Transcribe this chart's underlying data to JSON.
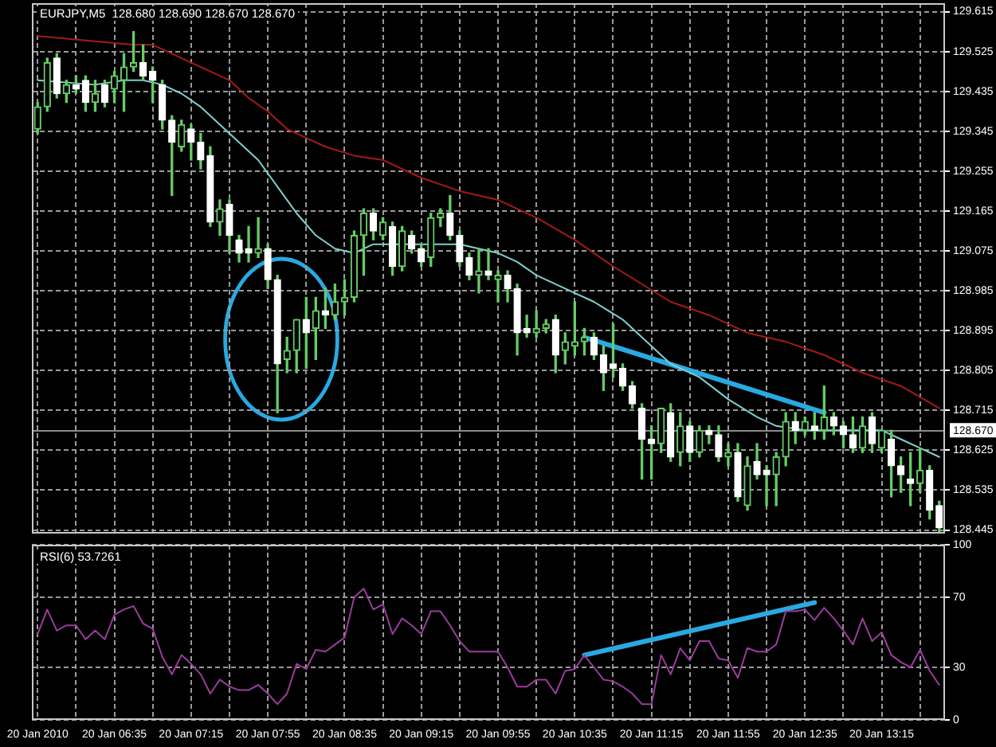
{
  "chart_data": [
    {
      "type": "candlestick",
      "title": "EURJPY,M5  128.680 128.690 128.670 128.670",
      "x": [
        "2010-01-20T05:55",
        "2010-01-20T06:00",
        "2010-01-20T06:05",
        "2010-01-20T06:10",
        "2010-01-20T06:15",
        "2010-01-20T06:20",
        "2010-01-20T06:25",
        "2010-01-20T06:30",
        "2010-01-20T06:35",
        "2010-01-20T06:40",
        "2010-01-20T06:45",
        "2010-01-20T06:50",
        "2010-01-20T06:55",
        "2010-01-20T07:00",
        "2010-01-20T07:05",
        "2010-01-20T07:10",
        "2010-01-20T07:15",
        "2010-01-20T07:20",
        "2010-01-20T07:25",
        "2010-01-20T07:30",
        "2010-01-20T07:35",
        "2010-01-20T07:40",
        "2010-01-20T07:45",
        "2010-01-20T07:50",
        "2010-01-20T07:55",
        "2010-01-20T08:00",
        "2010-01-20T08:05",
        "2010-01-20T08:10",
        "2010-01-20T08:15",
        "2010-01-20T08:20",
        "2010-01-20T08:25",
        "2010-01-20T08:30",
        "2010-01-20T08:35",
        "2010-01-20T08:40",
        "2010-01-20T08:45",
        "2010-01-20T08:50",
        "2010-01-20T08:55",
        "2010-01-20T09:00",
        "2010-01-20T09:05",
        "2010-01-20T09:10",
        "2010-01-20T09:15",
        "2010-01-20T09:20",
        "2010-01-20T09:25",
        "2010-01-20T09:30",
        "2010-01-20T09:35",
        "2010-01-20T09:40",
        "2010-01-20T09:45",
        "2010-01-20T09:50",
        "2010-01-20T09:55",
        "2010-01-20T10:00",
        "2010-01-20T10:05",
        "2010-01-20T10:10",
        "2010-01-20T10:15",
        "2010-01-20T10:20",
        "2010-01-20T10:25",
        "2010-01-20T10:30",
        "2010-01-20T10:35",
        "2010-01-20T10:40",
        "2010-01-20T10:45",
        "2010-01-20T10:50",
        "2010-01-20T10:55",
        "2010-01-20T11:00",
        "2010-01-20T11:05",
        "2010-01-20T11:10",
        "2010-01-20T11:15",
        "2010-01-20T11:20",
        "2010-01-20T11:25",
        "2010-01-20T11:30",
        "2010-01-20T11:35",
        "2010-01-20T11:40",
        "2010-01-20T11:45",
        "2010-01-20T11:50",
        "2010-01-20T11:55",
        "2010-01-20T12:00",
        "2010-01-20T12:05",
        "2010-01-20T12:10",
        "2010-01-20T12:15",
        "2010-01-20T12:20",
        "2010-01-20T12:25",
        "2010-01-20T12:30",
        "2010-01-20T12:35",
        "2010-01-20T12:40",
        "2010-01-20T12:45",
        "2010-01-20T12:50",
        "2010-01-20T12:55",
        "2010-01-20T13:00",
        "2010-01-20T13:05",
        "2010-01-20T13:10",
        "2010-01-20T13:15",
        "2010-01-20T13:20",
        "2010-01-20T13:25",
        "2010-01-20T13:30",
        "2010-01-20T13:35",
        "2010-01-20T13:40",
        "2010-01-20T13:45"
      ],
      "ohlc": [
        [
          129.35,
          129.41,
          129.34,
          129.4
        ],
        [
          129.4,
          129.51,
          129.39,
          129.5
        ],
        [
          129.51,
          129.52,
          129.42,
          129.43
        ],
        [
          129.43,
          129.46,
          129.41,
          129.45
        ],
        [
          129.45,
          129.47,
          129.43,
          129.44
        ],
        [
          129.46,
          129.47,
          129.39,
          129.41
        ],
        [
          129.41,
          129.46,
          129.39,
          129.43
        ],
        [
          129.45,
          129.46,
          129.4,
          129.41
        ],
        [
          129.44,
          129.48,
          129.41,
          129.47
        ],
        [
          129.46,
          129.52,
          129.39,
          129.49
        ],
        [
          129.49,
          129.57,
          129.48,
          129.5
        ],
        [
          129.5,
          129.54,
          129.46,
          129.47
        ],
        [
          129.48,
          129.49,
          129.41,
          129.46
        ],
        [
          129.45,
          129.46,
          129.35,
          129.37
        ],
        [
          129.37,
          129.38,
          129.2,
          129.32
        ],
        [
          129.31,
          129.37,
          129.3,
          129.36
        ],
        [
          129.35,
          129.36,
          129.28,
          129.32
        ],
        [
          129.32,
          129.34,
          129.26,
          129.28
        ],
        [
          129.29,
          129.31,
          129.13,
          129.14
        ],
        [
          129.14,
          129.19,
          129.11,
          129.17
        ],
        [
          129.18,
          129.19,
          129.07,
          129.11
        ],
        [
          129.1,
          129.11,
          129.05,
          129.07
        ],
        [
          129.08,
          129.13,
          129.05,
          129.07
        ],
        [
          129.07,
          129.15,
          129.06,
          129.08
        ],
        [
          129.08,
          129.09,
          128.99,
          129.01
        ],
        [
          129.01,
          129.02,
          128.71,
          128.82
        ],
        [
          128.83,
          128.88,
          128.8,
          128.85
        ],
        [
          128.85,
          128.92,
          128.8,
          128.92
        ],
        [
          128.92,
          128.97,
          128.81,
          128.89
        ],
        [
          128.9,
          128.97,
          128.83,
          128.94
        ],
        [
          128.94,
          128.99,
          128.9,
          128.93
        ],
        [
          128.93,
          129.0,
          128.92,
          128.96
        ],
        [
          128.96,
          129.01,
          128.93,
          128.97
        ],
        [
          128.97,
          129.12,
          128.96,
          129.11
        ],
        [
          129.11,
          129.17,
          129.02,
          129.16
        ],
        [
          129.16,
          129.17,
          129.1,
          129.12
        ],
        [
          129.11,
          129.15,
          129.1,
          129.14
        ],
        [
          129.13,
          129.14,
          129.02,
          129.04
        ],
        [
          129.04,
          129.13,
          129.03,
          129.12
        ],
        [
          129.11,
          129.12,
          129.07,
          129.08
        ],
        [
          129.08,
          129.09,
          129.04,
          129.05
        ],
        [
          129.06,
          129.16,
          129.04,
          129.15
        ],
        [
          129.15,
          129.17,
          129.13,
          129.16
        ],
        [
          129.16,
          129.2,
          129.1,
          129.11
        ],
        [
          129.11,
          129.12,
          129.04,
          129.05
        ],
        [
          129.06,
          129.07,
          129.01,
          129.02
        ],
        [
          129.02,
          129.08,
          128.98,
          129.03
        ],
        [
          129.03,
          129.08,
          129.01,
          129.02
        ],
        [
          129.01,
          129.03,
          128.96,
          129.02
        ],
        [
          129.02,
          129.03,
          128.96,
          128.99
        ],
        [
          128.99,
          129.0,
          128.84,
          128.89
        ],
        [
          128.9,
          128.93,
          128.88,
          128.89
        ],
        [
          128.89,
          128.94,
          128.88,
          128.9
        ],
        [
          128.9,
          128.92,
          128.89,
          128.91
        ],
        [
          128.92,
          128.93,
          128.8,
          128.84
        ],
        [
          128.85,
          128.89,
          128.82,
          128.87
        ],
        [
          128.86,
          128.96,
          128.84,
          128.87
        ],
        [
          128.87,
          128.9,
          128.84,
          128.88
        ],
        [
          128.88,
          128.89,
          128.83,
          128.84
        ],
        [
          128.84,
          128.86,
          128.76,
          128.8
        ],
        [
          128.82,
          128.91,
          128.79,
          128.81
        ],
        [
          128.81,
          128.82,
          128.76,
          128.77
        ],
        [
          128.77,
          128.78,
          128.72,
          128.73
        ],
        [
          128.72,
          128.73,
          128.56,
          128.65
        ],
        [
          128.65,
          128.68,
          128.56,
          128.64
        ],
        [
          128.64,
          128.72,
          128.62,
          128.72
        ],
        [
          128.71,
          128.73,
          128.6,
          128.61
        ],
        [
          128.62,
          128.71,
          128.59,
          128.68
        ],
        [
          128.68,
          128.69,
          128.6,
          128.62
        ],
        [
          128.62,
          128.68,
          128.61,
          128.67
        ],
        [
          128.67,
          128.68,
          128.64,
          128.66
        ],
        [
          128.66,
          128.68,
          128.6,
          128.61
        ],
        [
          128.61,
          128.64,
          128.59,
          128.62
        ],
        [
          128.62,
          128.64,
          128.51,
          128.52
        ],
        [
          128.5,
          128.61,
          128.49,
          128.59
        ],
        [
          128.6,
          128.64,
          128.56,
          128.57
        ],
        [
          128.58,
          128.59,
          128.5,
          128.57
        ],
        [
          128.57,
          128.62,
          128.5,
          128.61
        ],
        [
          128.61,
          128.71,
          128.59,
          128.69
        ],
        [
          128.69,
          128.71,
          128.64,
          128.67
        ],
        [
          128.67,
          128.7,
          128.66,
          128.69
        ],
        [
          128.68,
          128.71,
          128.65,
          128.67
        ],
        [
          128.67,
          128.77,
          128.65,
          128.7
        ],
        [
          128.7,
          128.71,
          128.66,
          128.68
        ],
        [
          128.68,
          128.69,
          128.63,
          128.66
        ],
        [
          128.66,
          128.7,
          128.62,
          128.63
        ],
        [
          128.63,
          128.7,
          128.62,
          128.68
        ],
        [
          128.7,
          128.71,
          128.62,
          128.64
        ],
        [
          128.63,
          128.67,
          128.62,
          128.67
        ],
        [
          128.65,
          128.67,
          128.52,
          128.59
        ],
        [
          128.59,
          128.61,
          128.53,
          128.57
        ],
        [
          128.56,
          128.62,
          128.5,
          128.55
        ],
        [
          128.55,
          128.63,
          128.53,
          128.58
        ],
        [
          128.58,
          128.59,
          128.47,
          128.49
        ],
        [
          128.5,
          128.51,
          128.44,
          128.45
        ]
      ],
      "color": "#66cc66",
      "colors": [
        "#66cc66",
        "#66cc66",
        "#ffffff",
        "#66cc66",
        "#ffffff",
        "#ffffff",
        "#66cc66",
        "#ffffff",
        "#66cc66",
        "#66cc66",
        "#66cc66",
        "#ffffff",
        "#ffffff",
        "#ffffff",
        "#ffffff",
        "#66cc66",
        "#ffffff",
        "#ffffff",
        "#ffffff",
        "#66cc66",
        "#ffffff",
        "#ffffff",
        "#ffffff",
        "#66cc66",
        "#ffffff",
        "#ffffff",
        "#66cc66",
        "#66cc66",
        "#ffffff",
        "#66cc66",
        "#ffffff",
        "#66cc66",
        "#66cc66",
        "#66cc66",
        "#66cc66",
        "#ffffff",
        "#66cc66",
        "#ffffff",
        "#66cc66",
        "#ffffff",
        "#ffffff",
        "#66cc66",
        "#66cc66",
        "#ffffff",
        "#ffffff",
        "#ffffff",
        "#66cc66",
        "#ffffff",
        "#66cc66",
        "#ffffff",
        "#ffffff",
        "#ffffff",
        "#66cc66",
        "#66cc66",
        "#ffffff",
        "#66cc66",
        "#66cc66",
        "#66cc66",
        "#ffffff",
        "#ffffff",
        "#ffffff",
        "#ffffff",
        "#ffffff",
        "#ffffff",
        "#ffffff",
        "#66cc66",
        "#ffffff",
        "#66cc66",
        "#ffffff",
        "#66cc66",
        "#ffffff",
        "#ffffff",
        "#66cc66",
        "#ffffff",
        "#66cc66",
        "#ffffff",
        "#ffffff",
        "#66cc66",
        "#66cc66",
        "#ffffff",
        "#66cc66",
        "#ffffff",
        "#66cc66",
        "#ffffff",
        "#ffffff",
        "#ffffff",
        "#66cc66",
        "#ffffff",
        "#66cc66",
        "#ffffff",
        "#ffffff",
        "#ffffff",
        "#66cc66",
        "#ffffff",
        "#ffffff"
      ],
      "series": [
        {
          "type": "line",
          "color": "#a31a1a",
          "x": [
            "2010-01-20T05:55",
            "2010-01-20T06:20",
            "2010-01-20T06:45",
            "2010-01-20T06:55",
            "2010-01-20T07:05",
            "2010-01-20T07:15",
            "2010-01-20T07:25",
            "2010-01-20T07:35",
            "2010-01-20T07:45",
            "2010-01-20T07:55",
            "2010-01-20T08:05",
            "2010-01-20T08:15",
            "2010-01-20T08:25",
            "2010-01-20T08:40",
            "2010-01-20T08:55",
            "2010-01-20T09:15",
            "2010-01-20T09:35",
            "2010-01-20T09:55",
            "2010-01-20T10:15",
            "2010-01-20T10:35",
            "2010-01-20T10:55",
            "2010-01-20T11:10",
            "2010-01-20T11:25",
            "2010-01-20T11:45",
            "2010-01-20T12:05",
            "2010-01-20T12:25",
            "2010-01-20T12:45",
            "2010-01-20T13:05",
            "2010-01-20T13:25",
            "2010-01-20T13:45"
          ],
          "values": [
            129.56,
            129.55,
            129.54,
            129.54,
            129.52,
            129.5,
            129.48,
            129.46,
            129.42,
            129.39,
            129.35,
            129.33,
            129.31,
            129.29,
            129.28,
            129.24,
            129.21,
            129.19,
            129.15,
            129.1,
            129.04,
            129.0,
            128.96,
            128.93,
            128.89,
            128.87,
            128.84,
            128.8,
            128.77,
            128.72
          ]
        },
        {
          "type": "line",
          "color": "#7fd0d0",
          "x": [
            "2010-01-20T05:55",
            "2010-01-20T06:25",
            "2010-01-20T06:40",
            "2010-01-20T06:50",
            "2010-01-20T07:00",
            "2010-01-20T07:10",
            "2010-01-20T07:20",
            "2010-01-20T07:30",
            "2010-01-20T07:40",
            "2010-01-20T07:50",
            "2010-01-20T08:00",
            "2010-01-20T08:10",
            "2010-01-20T08:20",
            "2010-01-20T08:30",
            "2010-01-20T08:40",
            "2010-01-20T08:50",
            "2010-01-20T09:05",
            "2010-01-20T09:25",
            "2010-01-20T09:35",
            "2010-01-20T09:45",
            "2010-01-20T09:55",
            "2010-01-20T10:05",
            "2010-01-20T10:15",
            "2010-01-20T10:30",
            "2010-01-20T10:45",
            "2010-01-20T11:00",
            "2010-01-20T11:10",
            "2010-01-20T11:25",
            "2010-01-20T11:40",
            "2010-01-20T11:55",
            "2010-01-20T12:10",
            "2010-01-20T12:20",
            "2010-01-20T12:35",
            "2010-01-20T12:55",
            "2010-01-20T13:15",
            "2010-01-20T13:25",
            "2010-01-20T13:35",
            "2010-01-20T13:45"
          ],
          "values": [
            129.46,
            129.45,
            129.46,
            129.46,
            129.45,
            129.43,
            129.4,
            129.36,
            129.32,
            129.28,
            129.22,
            129.16,
            129.11,
            129.08,
            129.07,
            129.09,
            129.09,
            129.09,
            129.09,
            129.08,
            129.07,
            129.05,
            129.02,
            128.99,
            128.96,
            128.92,
            128.88,
            128.82,
            128.79,
            128.74,
            128.7,
            128.68,
            128.67,
            128.67,
            128.67,
            128.65,
            128.63,
            128.61
          ]
        },
        {
          "type": "line",
          "color": "#29a9e1",
          "x": [
            "2010-01-20T10:40",
            "2010-01-20T12:45"
          ],
          "values": [
            128.88,
            128.71
          ]
        }
      ],
      "xlim": [
        "2010-01-20T05:52",
        "2010-01-20T13:48"
      ],
      "xticks": [
        {
          "value": "2010-01-20T05:55",
          "label": null
        },
        {
          "value": "2010-01-20T06:15",
          "label": null
        },
        {
          "value": "2010-01-20T06:35",
          "label": null
        },
        {
          "value": "2010-01-20T06:55",
          "label": null
        },
        {
          "value": "2010-01-20T07:15",
          "label": null
        },
        {
          "value": "2010-01-20T07:35",
          "label": null
        },
        {
          "value": "2010-01-20T07:55",
          "label": null
        },
        {
          "value": "2010-01-20T08:15",
          "label": null
        },
        {
          "value": "2010-01-20T08:35",
          "label": null
        },
        {
          "value": "2010-01-20T08:55",
          "label": null
        },
        {
          "value": "2010-01-20T09:15",
          "label": null
        },
        {
          "value": "2010-01-20T09:35",
          "label": null
        },
        {
          "value": "2010-01-20T09:55",
          "label": null
        },
        {
          "value": "2010-01-20T10:15",
          "label": null
        },
        {
          "value": "2010-01-20T10:35",
          "label": null
        },
        {
          "value": "2010-01-20T10:55",
          "label": null
        },
        {
          "value": "2010-01-20T11:15",
          "label": null
        },
        {
          "value": "2010-01-20T11:35",
          "label": null
        },
        {
          "value": "2010-01-20T11:55",
          "label": null
        },
        {
          "value": "2010-01-20T12:15",
          "label": null
        },
        {
          "value": "2010-01-20T12:35",
          "label": null
        },
        {
          "value": "2010-01-20T12:55",
          "label": null
        },
        {
          "value": "2010-01-20T13:15",
          "label": null
        },
        {
          "value": "2010-01-20T13:35",
          "label": null
        }
      ],
      "ylim": [
        128.437,
        129.634
      ],
      "yticks": [
        129.615,
        129.525,
        129.435,
        129.345,
        129.255,
        129.165,
        129.075,
        128.985,
        128.895,
        128.805,
        128.715,
        128.625,
        128.535,
        128.445
      ],
      "ref_lines": [
        {
          "axis": "y",
          "value": 128.67,
          "label": "128.670",
          "color": "#8c8c8c"
        }
      ],
      "grid": true,
      "tick_labels": "y"
    },
    {
      "type": "line",
      "title": "RSI(6) 53.7261",
      "x": [
        "2010-01-20T05:55",
        "2010-01-20T06:00",
        "2010-01-20T06:05",
        "2010-01-20T06:10",
        "2010-01-20T06:15",
        "2010-01-20T06:20",
        "2010-01-20T06:25",
        "2010-01-20T06:30",
        "2010-01-20T06:35",
        "2010-01-20T06:40",
        "2010-01-20T06:45",
        "2010-01-20T06:50",
        "2010-01-20T06:55",
        "2010-01-20T07:00",
        "2010-01-20T07:05",
        "2010-01-20T07:10",
        "2010-01-20T07:15",
        "2010-01-20T07:20",
        "2010-01-20T07:25",
        "2010-01-20T07:30",
        "2010-01-20T07:35",
        "2010-01-20T07:40",
        "2010-01-20T07:45",
        "2010-01-20T07:50",
        "2010-01-20T07:55",
        "2010-01-20T08:00",
        "2010-01-20T08:05",
        "2010-01-20T08:10",
        "2010-01-20T08:15",
        "2010-01-20T08:20",
        "2010-01-20T08:25",
        "2010-01-20T08:30",
        "2010-01-20T08:35",
        "2010-01-20T08:40",
        "2010-01-20T08:45",
        "2010-01-20T08:50",
        "2010-01-20T08:55",
        "2010-01-20T09:00",
        "2010-01-20T09:05",
        "2010-01-20T09:10",
        "2010-01-20T09:15",
        "2010-01-20T09:20",
        "2010-01-20T09:25",
        "2010-01-20T09:30",
        "2010-01-20T09:35",
        "2010-01-20T09:40",
        "2010-01-20T09:45",
        "2010-01-20T09:50",
        "2010-01-20T09:55",
        "2010-01-20T10:00",
        "2010-01-20T10:05",
        "2010-01-20T10:10",
        "2010-01-20T10:15",
        "2010-01-20T10:20",
        "2010-01-20T10:25",
        "2010-01-20T10:30",
        "2010-01-20T10:35",
        "2010-01-20T10:40",
        "2010-01-20T10:45",
        "2010-01-20T10:50",
        "2010-01-20T10:55",
        "2010-01-20T11:00",
        "2010-01-20T11:05",
        "2010-01-20T11:10",
        "2010-01-20T11:15",
        "2010-01-20T11:20",
        "2010-01-20T11:25",
        "2010-01-20T11:30",
        "2010-01-20T11:35",
        "2010-01-20T11:40",
        "2010-01-20T11:45",
        "2010-01-20T11:50",
        "2010-01-20T11:55",
        "2010-01-20T12:00",
        "2010-01-20T12:05",
        "2010-01-20T12:10",
        "2010-01-20T12:15",
        "2010-01-20T12:20",
        "2010-01-20T12:25",
        "2010-01-20T12:30",
        "2010-01-20T12:35",
        "2010-01-20T12:40",
        "2010-01-20T12:45",
        "2010-01-20T12:50",
        "2010-01-20T12:55",
        "2010-01-20T13:00",
        "2010-01-20T13:05",
        "2010-01-20T13:10",
        "2010-01-20T13:15",
        "2010-01-20T13:20",
        "2010-01-20T13:25",
        "2010-01-20T13:30",
        "2010-01-20T13:35",
        "2010-01-20T13:40",
        "2010-01-20T13:45"
      ],
      "series": [
        {
          "color": "#9a3c9a",
          "values": [
            49,
            63,
            51,
            54,
            54,
            46,
            51,
            46,
            60,
            63,
            65,
            55,
            52,
            36,
            26,
            37,
            32,
            26,
            15,
            23,
            19,
            17,
            17,
            20,
            15,
            9,
            15,
            32,
            29,
            40,
            39,
            43,
            47,
            70,
            75,
            63,
            66,
            49,
            58,
            54,
            49,
            62,
            62,
            54,
            45,
            39,
            39,
            39,
            39,
            30,
            19,
            19,
            23,
            23,
            15,
            28,
            29,
            37,
            30,
            23,
            22,
            19,
            15,
            9,
            9,
            37,
            26,
            41,
            34,
            45,
            45,
            35,
            34,
            24,
            41,
            39,
            39,
            43,
            62,
            62,
            63,
            57,
            64,
            58,
            51,
            43,
            58,
            45,
            50,
            37,
            33,
            30,
            40,
            28,
            20
          ]
        },
        {
          "type": "line",
          "color": "#29a9e1",
          "x": [
            "2010-01-20T10:40",
            "2010-01-20T12:40"
          ],
          "values": [
            37,
            67
          ]
        }
      ],
      "xlim": [
        "2010-01-20T05:52",
        "2010-01-20T13:48"
      ],
      "xticks": [
        {
          "value": "2010-01-20T05:55",
          "label": "20 Jan 2010"
        },
        {
          "value": "2010-01-20T06:15",
          "label": null
        },
        {
          "value": "2010-01-20T06:35",
          "label": "20 Jan 06:35"
        },
        {
          "value": "2010-01-20T06:55",
          "label": null
        },
        {
          "value": "2010-01-20T07:15",
          "label": "20 Jan 07:15"
        },
        {
          "value": "2010-01-20T07:35",
          "label": null
        },
        {
          "value": "2010-01-20T07:55",
          "label": "20 Jan 07:55"
        },
        {
          "value": "2010-01-20T08:15",
          "label": null
        },
        {
          "value": "2010-01-20T08:35",
          "label": "20 Jan 08:35"
        },
        {
          "value": "2010-01-20T08:55",
          "label": null
        },
        {
          "value": "2010-01-20T09:15",
          "label": "20 Jan 09:15"
        },
        {
          "value": "2010-01-20T09:35",
          "label": null
        },
        {
          "value": "2010-01-20T09:55",
          "label": "20 Jan 09:55"
        },
        {
          "value": "2010-01-20T10:15",
          "label": null
        },
        {
          "value": "2010-01-20T10:35",
          "label": "20 Jan 10:35"
        },
        {
          "value": "2010-01-20T10:55",
          "label": null
        },
        {
          "value": "2010-01-20T11:15",
          "label": "20 Jan 11:15"
        },
        {
          "value": "2010-01-20T11:35",
          "label": null
        },
        {
          "value": "2010-01-20T11:55",
          "label": "20 Jan 11:55"
        },
        {
          "value": "2010-01-20T12:15",
          "label": null
        },
        {
          "value": "2010-01-20T12:35",
          "label": "20 Jan 12:35"
        },
        {
          "value": "2010-01-20T12:55",
          "label": null
        },
        {
          "value": "2010-01-20T13:15",
          "label": "20 Jan 13:15"
        },
        {
          "value": "2010-01-20T13:35",
          "label": null
        }
      ],
      "ylim": [
        0,
        100
      ],
      "yticks": [
        0,
        30,
        70,
        100
      ],
      "grid": true
    }
  ]
}
